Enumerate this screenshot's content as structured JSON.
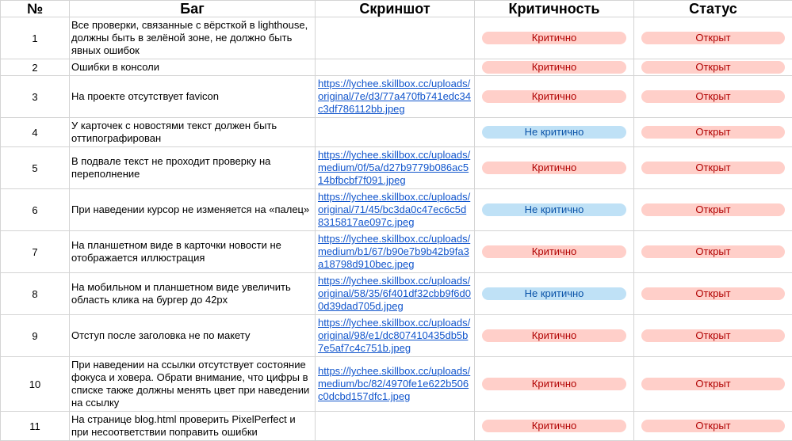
{
  "colors": {
    "critical_bg": "#ffcfc9",
    "critical_text": "#b10202",
    "noncritical_bg": "#bfe1f6",
    "noncritical_text": "#0a53a8",
    "link": "#1155cc"
  },
  "headers": {
    "num": "№",
    "bug": "Баг",
    "shot": "Скриншот",
    "severity": "Критичность",
    "status": "Статус"
  },
  "rows": [
    {
      "num": "1",
      "bug": "Все проверки, связанные с вёрсткой в lighthouse, должны быть в зелёной зоне, не должно быть явных ошибок",
      "shot": "",
      "severity": "Критично",
      "severity_kind": "red",
      "status": "Открыт"
    },
    {
      "num": "2",
      "bug": "Ошибки в консоли",
      "shot": "",
      "severity": "Критично",
      "severity_kind": "red",
      "status": "Открыт"
    },
    {
      "num": "3",
      "bug": "На проекте отсутствует favicon",
      "shot": "https://lychee.skillbox.cc/uploads/original/7e/d3/77a470fb741edc34c3df786112bb.jpeg",
      "severity": "Критично",
      "severity_kind": "red",
      "status": "Открыт"
    },
    {
      "num": "4",
      "bug": "У карточек с новостями текст должен быть оттипографирован",
      "shot": "",
      "severity": "Не критично",
      "severity_kind": "blue",
      "status": "Открыт"
    },
    {
      "num": "5",
      "bug": "В подвале текст не проходит проверку на переполнение",
      "shot": "https://lychee.skillbox.cc/uploads/medium/0f/5a/d27b9779b086ac514bfbcbf7f091.jpeg",
      "severity": "Критично",
      "severity_kind": "red",
      "status": "Открыт"
    },
    {
      "num": "6",
      "bug": "При наведении курсор не изменяется на «палец»",
      "shot": "https://lychee.skillbox.cc/uploads/original/71/45/bc3da0c47ec6c5d8315817ae097c.jpeg",
      "severity": "Не критично",
      "severity_kind": "blue",
      "status": "Открыт"
    },
    {
      "num": "7",
      "bug": "На планшетном виде в карточки новости не отображается иллюстрация",
      "shot": "https://lychee.skillbox.cc/uploads/medium/b1/67/b90e7b9b42b9fa3a18798d910bec.jpeg",
      "severity": "Критично",
      "severity_kind": "red",
      "status": "Открыт"
    },
    {
      "num": "8",
      "bug": "На мобильном и планшетном виде увеличить область клика на бургер до 42px",
      "shot": "https://lychee.skillbox.cc/uploads/original/58/35/6f401df32cbb9f6d00d39dad705d.jpeg",
      "severity": "Не критично",
      "severity_kind": "blue",
      "status": "Открыт"
    },
    {
      "num": "9",
      "bug": "Отступ после заголовка не по макету",
      "shot": "https://lychee.skillbox.cc/uploads/original/98/e1/dc807410435db5b7e5af7c4c751b.jpeg",
      "severity": "Критично",
      "severity_kind": "red",
      "status": "Открыт"
    },
    {
      "num": "10",
      "bug": "При наведении на ссылки отсутствует состояние фокуса и ховера. Обрати внимание, что цифры в списке также должны менять цвет при наведении на ссылку",
      "shot": "https://lychee.skillbox.cc/uploads/medium/bc/82/4970fe1e622b506c0dcbd157dfc1.jpeg",
      "severity": "Критично",
      "severity_kind": "red",
      "status": "Открыт"
    },
    {
      "num": "11",
      "bug": "На странице blog.html проверить PixelPerfect и при несоответствии поправить ошибки",
      "shot": "",
      "severity": "Критично",
      "severity_kind": "red",
      "status": "Открыт"
    }
  ]
}
